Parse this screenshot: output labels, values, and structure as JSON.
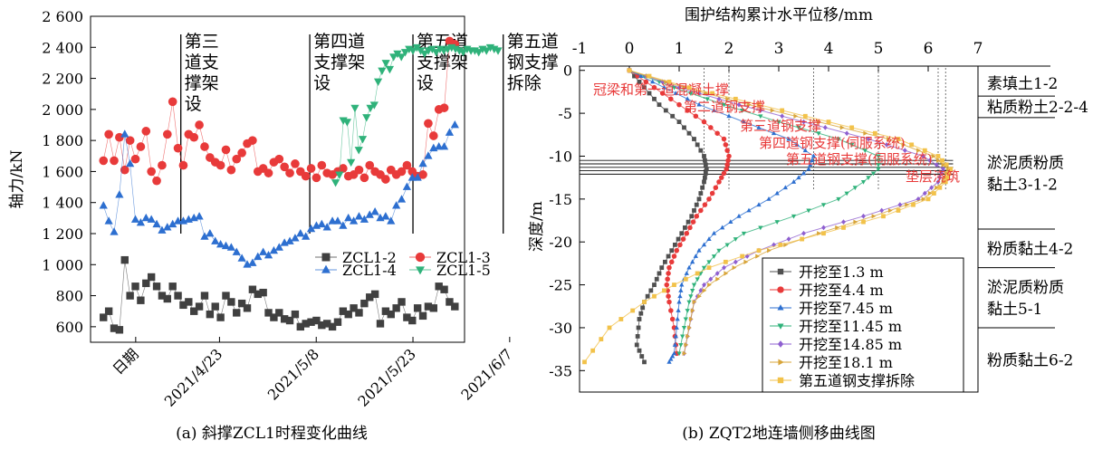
{
  "chart_data": [
    {
      "type": "scatter",
      "caption": "(a) 斜撑ZCL1时程变化曲线",
      "ylabel": "轴力/kN",
      "xlabel": "",
      "ylim": [
        500,
        2600
      ],
      "yticks": [
        600,
        800,
        1000,
        1200,
        1400,
        1600,
        1800,
        2000,
        2200,
        2400,
        2600
      ],
      "ytick_labels": [
        "600",
        "800",
        "1 000",
        "1 200",
        "1 400",
        "1 600",
        "1 800",
        "2 000",
        "2 200",
        "2 400",
        "2 600"
      ],
      "xtick_labels": [
        "日期",
        "2021/4/23",
        "2021/5/8",
        "2021/5/23",
        "2021/6/7"
      ],
      "xlim_days": [
        -10,
        48
      ],
      "xtick_days": [
        -3,
        10,
        25,
        40,
        55
      ],
      "start_date": "2021/4/13",
      "phase_lines": [
        {
          "day": 4,
          "label": "第三\n道支\n撑架\n设"
        },
        {
          "day": 24,
          "label": "第四道\n支撑架\n设"
        },
        {
          "day": 40,
          "label": "第五道\n支撑架\n设"
        },
        {
          "day": 54,
          "label": "第五道\n钢支撑\n拆除"
        }
      ],
      "legend_position": "center-right",
      "series": [
        {
          "name": "ZCL1-2",
          "color": "#404040",
          "marker": "square",
          "x": [
            0,
            1,
            2,
            3,
            4,
            5,
            6,
            7,
            8,
            9,
            10,
            11,
            12,
            13,
            14,
            15,
            16,
            17,
            18,
            19,
            20,
            21,
            22,
            23,
            24,
            25,
            26,
            27,
            28,
            29,
            30,
            31,
            32,
            33,
            34,
            35,
            36,
            37,
            38,
            39,
            40,
            41,
            42,
            43,
            44,
            45,
            46,
            47,
            48,
            49,
            50,
            51,
            52,
            53,
            54,
            55,
            56,
            57,
            58,
            59,
            60,
            61,
            62,
            63,
            64,
            65,
            66
          ],
          "y": [
            660,
            700,
            590,
            580,
            1030,
            800,
            860,
            770,
            880,
            920,
            860,
            800,
            780,
            860,
            800,
            740,
            760,
            700,
            730,
            800,
            680,
            730,
            660,
            800,
            760,
            690,
            750,
            720,
            840,
            810,
            820,
            690,
            660,
            690,
            650,
            640,
            680,
            600,
            620,
            630,
            640,
            610,
            620,
            600,
            630,
            700,
            680,
            720,
            690,
            750,
            790,
            810,
            620,
            700,
            680,
            720,
            760,
            660,
            640,
            720,
            670,
            730,
            720,
            860,
            840,
            760,
            730
          ]
        },
        {
          "name": "ZCL1-3",
          "color": "#e83a3a",
          "marker": "circle",
          "x": [
            0,
            1,
            2,
            3,
            4,
            5,
            6,
            7,
            8,
            9,
            10,
            11,
            12,
            13,
            14,
            15,
            16,
            17,
            18,
            19,
            20,
            21,
            22,
            23,
            24,
            25,
            26,
            27,
            28,
            29,
            30,
            31,
            32,
            33,
            34,
            35,
            36,
            37,
            38,
            39,
            40,
            41,
            42,
            43,
            44,
            45,
            46,
            47,
            48,
            49,
            50,
            51,
            52,
            53,
            54,
            55,
            56,
            57,
            58,
            59,
            60,
            61,
            62,
            63,
            64,
            65,
            66
          ],
          "y": [
            1670,
            1840,
            1670,
            1820,
            1610,
            1800,
            1680,
            1760,
            1860,
            1600,
            1540,
            1640,
            1840,
            2050,
            1750,
            1640,
            1840,
            1820,
            1900,
            1760,
            1690,
            1660,
            1640,
            1740,
            1610,
            1680,
            1720,
            1780,
            1800,
            1600,
            1620,
            1590,
            1660,
            1680,
            1630,
            1590,
            1650,
            1600,
            1570,
            1620,
            1560,
            1640,
            1590,
            1580,
            1600,
            1620,
            1570,
            1580,
            1610,
            1560,
            1640,
            1600,
            1580,
            1550,
            1610,
            1580,
            1600,
            1640,
            1600,
            1570,
            1580,
            1910,
            1830,
            2000,
            2010,
            2440,
            2420
          ]
        },
        {
          "name": "ZCL1-4",
          "color": "#2d6fd0",
          "marker": "triangle-up",
          "x": [
            0,
            1,
            2,
            3,
            4,
            5,
            6,
            7,
            8,
            9,
            10,
            11,
            12,
            13,
            14,
            15,
            16,
            17,
            18,
            19,
            20,
            21,
            22,
            23,
            24,
            25,
            26,
            27,
            28,
            29,
            30,
            31,
            32,
            33,
            34,
            35,
            36,
            37,
            38,
            39,
            40,
            41,
            42,
            43,
            44,
            45,
            46,
            47,
            48,
            49,
            50,
            51,
            52,
            53,
            54,
            55,
            56,
            57,
            58,
            59,
            60,
            61,
            62,
            63,
            64,
            65,
            66
          ],
          "y": [
            1380,
            1280,
            1210,
            1450,
            1840,
            1650,
            1290,
            1270,
            1300,
            1290,
            1260,
            1220,
            1240,
            1260,
            1280,
            1280,
            1290,
            1300,
            1310,
            1180,
            1200,
            1150,
            1130,
            1120,
            1110,
            1080,
            1040,
            1000,
            1010,
            1050,
            1080,
            1060,
            1090,
            1110,
            1140,
            1150,
            1170,
            1200,
            1180,
            1230,
            1250,
            1260,
            1240,
            1280,
            1280,
            1250,
            1300,
            1280,
            1310,
            1290,
            1320,
            1340,
            1300,
            1310,
            1280,
            1380,
            1420,
            1500,
            1560,
            1560,
            1650,
            1700,
            1750,
            1760,
            1760,
            1850,
            1900
          ]
        },
        {
          "name": "ZCL1-5",
          "color": "#2fb27a",
          "marker": "triangle-down",
          "x": [
            0,
            1,
            2,
            3,
            4,
            5,
            6,
            7,
            8,
            9,
            10,
            11,
            12,
            13,
            14,
            15,
            16,
            17,
            18,
            19,
            20,
            21,
            22,
            23,
            24,
            25,
            26,
            27,
            28,
            29,
            30,
            31,
            32,
            33,
            34,
            35,
            36,
            37,
            38,
            39,
            40,
            41,
            42
          ],
          "y": [
            1530,
            1580,
            1930,
            1920,
            1660,
            2010,
            1740,
            1810,
            1950,
            2010,
            2030,
            2180,
            2250,
            2300,
            2260,
            2340,
            2360,
            2340,
            2370,
            2390,
            2380,
            2400,
            2380,
            2360,
            2380,
            2390,
            2370,
            2390,
            2380,
            2390,
            2400,
            2390,
            2380,
            2370,
            2390,
            2380,
            2380,
            2370,
            2390,
            2380,
            2400,
            2390,
            2380
          ]
        }
      ]
    },
    {
      "type": "line",
      "caption": "(b) ZQT2地连墙侧移曲线图",
      "title": "围护结构累计水平位移/mm",
      "ylabel": "深度/m",
      "xlim": [
        -1,
        7
      ],
      "ylim": [
        -37.5,
        0.5
      ],
      "xticks": [
        -1,
        0,
        1,
        2,
        3,
        4,
        5,
        6,
        7
      ],
      "yticks": [
        0,
        -5,
        -10,
        -15,
        -20,
        -25,
        -30,
        -35
      ],
      "legend_position": "bottom-right",
      "strut_levels": [
        {
          "label": "冠梁和第一道混凝土撑",
          "depth": 0
        },
        {
          "label": "第二道钢支撑",
          "depth": -4.4
        },
        {
          "label": "第三道钢支撑",
          "depth": -7.45
        },
        {
          "label": "第四道钢支撑(伺服系统)",
          "depth": -9.6
        },
        {
          "label": "第五道钢支撑(伺服系统)",
          "depth": -11.5
        },
        {
          "label": "垫层浇筑",
          "depth": -12.8
        }
      ],
      "soil_layers": [
        {
          "label": "素填土1-2",
          "top": 0,
          "bottom": -3
        },
        {
          "label": "粘质粉土2-2-4",
          "top": -3,
          "bottom": -5.5
        },
        {
          "label": "淤泥质粉质\n黏土3-1-2",
          "top": -5.5,
          "bottom": -18.5
        },
        {
          "label": "粉质黏土4-2",
          "top": -18.5,
          "bottom": -23
        },
        {
          "label": "淤泥质粉质\n黏土5-1",
          "top": -23,
          "bottom": -30
        },
        {
          "label": "粉质黏土6-2",
          "top": -30,
          "bottom": -37.5
        }
      ],
      "series": [
        {
          "name": "开挖至1.3 m",
          "color": "#505050",
          "marker": "square",
          "x": [
            0.0,
            0.3,
            0.6,
            1.0,
            1.3,
            1.5,
            1.55,
            1.5,
            1.4,
            1.25,
            1.05,
            0.85,
            0.65,
            0.5,
            0.3,
            0.2,
            0.15,
            0.3
          ],
          "y": [
            0,
            -2,
            -4,
            -6,
            -8,
            -10,
            -11.5,
            -13,
            -15,
            -17,
            -19,
            -21,
            -23,
            -25,
            -27,
            -29,
            -32,
            -34
          ]
        },
        {
          "name": "开挖至4.4 m",
          "color": "#e83a3a",
          "marker": "circle",
          "x": [
            0.0,
            0.5,
            1.0,
            1.5,
            1.9,
            2.0,
            1.95,
            1.8,
            1.6,
            1.35,
            1.15,
            0.95,
            0.8,
            0.75,
            0.8,
            0.9,
            0.95
          ],
          "y": [
            0,
            -2,
            -4,
            -6,
            -8,
            -10,
            -11.5,
            -13,
            -15,
            -17,
            -19,
            -21,
            -23,
            -25,
            -27,
            -30,
            -33
          ]
        },
        {
          "name": "开挖至7.45 m",
          "color": "#2d6fd0",
          "marker": "triangle-up",
          "x": [
            0.0,
            0.7,
            1.4,
            2.3,
            3.2,
            3.7,
            3.6,
            3.3,
            2.8,
            2.2,
            1.7,
            1.4,
            1.2,
            1.05,
            1.0,
            0.95,
            0.9,
            0.8
          ],
          "y": [
            0,
            -2,
            -4,
            -6,
            -8,
            -10,
            -11.5,
            -13,
            -15,
            -17,
            -19,
            -21,
            -23,
            -25,
            -27,
            -30,
            -33,
            -34
          ]
        },
        {
          "name": "开挖至11.45 m",
          "color": "#2fb27a",
          "marker": "triangle-down",
          "x": [
            0.0,
            0.9,
            1.9,
            3.0,
            4.2,
            5.0,
            5.0,
            4.7,
            4.2,
            3.3,
            2.3,
            1.8,
            1.5,
            1.3,
            1.2,
            1.1,
            1.0
          ],
          "y": [
            0,
            -2,
            -4,
            -6,
            -8,
            -10,
            -11.5,
            -13,
            -15,
            -17,
            -19,
            -21,
            -23,
            -25,
            -27,
            -30,
            -33
          ]
        },
        {
          "name": "开挖至14.85 m",
          "color": "#8e5fd0",
          "marker": "diamond",
          "x": [
            0.0,
            1.0,
            2.2,
            3.5,
            4.8,
            5.9,
            6.3,
            6.2,
            5.8,
            4.7,
            3.5,
            2.6,
            1.9,
            1.5,
            1.3,
            1.2,
            1.1
          ],
          "y": [
            0,
            -2,
            -4,
            -6,
            -8,
            -10,
            -11.5,
            -13,
            -15,
            -17,
            -19,
            -21,
            -23,
            -25,
            -27,
            -30,
            -33
          ]
        },
        {
          "name": "开挖至18.1 m",
          "color": "#d8a53a",
          "marker": "triangle-right",
          "x": [
            0.0,
            1.1,
            2.4,
            3.8,
            5.2,
            6.1,
            6.4,
            6.3,
            5.9,
            4.9,
            3.8,
            2.8,
            2.1,
            1.6,
            1.3,
            1.2,
            1.1
          ],
          "y": [
            0,
            -2,
            -4,
            -6,
            -8,
            -10,
            -11.5,
            -13,
            -15,
            -17,
            -19,
            -21,
            -23,
            -25,
            -27,
            -30,
            -33
          ]
        },
        {
          "name": "第五道钢支撑拆除",
          "color": "#f2c24a",
          "marker": "square",
          "x": [
            0.0,
            1.2,
            2.6,
            4.0,
            5.4,
            6.2,
            6.45,
            6.35,
            6.0,
            5.1,
            3.9,
            2.6,
            1.6,
            0.9,
            0.3,
            -0.4,
            -0.9
          ],
          "y": [
            0,
            -2,
            -4,
            -6,
            -8,
            -10,
            -11.5,
            -13,
            -15,
            -17,
            -19,
            -21,
            -23,
            -25,
            -27,
            -30,
            -34
          ]
        }
      ]
    }
  ]
}
